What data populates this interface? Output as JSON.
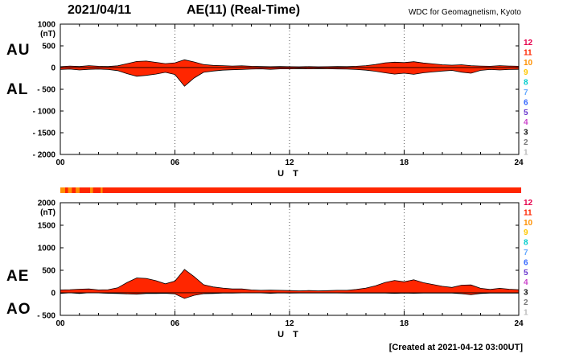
{
  "header": {
    "date": "2021/04/11",
    "title": "AE(11) (Real-Time)",
    "source": "WDC for Geomagnetism, Kyoto"
  },
  "footer": {
    "created": "[Created at 2021-04-12 03:00UT]"
  },
  "panels": {
    "top": {
      "left_labels": [
        "AU",
        "AL"
      ],
      "unit": "(nT)"
    },
    "bottom": {
      "left_labels": [
        "AE",
        "AO"
      ],
      "unit": "(nT)"
    }
  },
  "station_legend": {
    "items": [
      {
        "label": "12",
        "color": "#e6004c"
      },
      {
        "label": "11",
        "color": "#ff2600"
      },
      {
        "label": "10",
        "color": "#ff9000"
      },
      {
        "label": "9",
        "color": "#ffc800"
      },
      {
        "label": "8",
        "color": "#00cccc"
      },
      {
        "label": "7",
        "color": "#66aaff"
      },
      {
        "label": "6",
        "color": "#3366ff"
      },
      {
        "label": "5",
        "color": "#6633cc"
      },
      {
        "label": "4",
        "color": "#cc44cc"
      },
      {
        "label": "3",
        "color": "#111111"
      },
      {
        "label": "2",
        "color": "#777777"
      },
      {
        "label": "1",
        "color": "#bbbbbb"
      }
    ]
  },
  "station_bar": {
    "base_color": "#ff2600",
    "segments": [
      {
        "start": 0.0,
        "end": 0.25,
        "color": "#ff9000"
      },
      {
        "start": 0.4,
        "end": 0.6,
        "color": "#ff9000"
      },
      {
        "start": 0.8,
        "end": 1.0,
        "color": "#ff9000"
      },
      {
        "start": 1.55,
        "end": 1.7,
        "color": "#ff9000"
      },
      {
        "start": 2.1,
        "end": 2.2,
        "color": "#ff9000"
      }
    ]
  },
  "chart_data": [
    {
      "type": "area",
      "title": "AU/AL",
      "xlabel": "U T",
      "ylabel": "(nT)",
      "xlim": [
        0,
        24
      ],
      "ylim": [
        -2000,
        1000
      ],
      "x_ticks": [
        0,
        6,
        12,
        18,
        24
      ],
      "x_tick_labels": [
        "00",
        "06",
        "12",
        "18",
        "24"
      ],
      "y_ticks": [
        1000,
        500,
        0,
        -500,
        -1000,
        -1500,
        -2000
      ],
      "y_tick_labels": [
        "1000",
        "500",
        "0",
        "- 500",
        "- 1000",
        "- 1500",
        "- 2000"
      ],
      "x_start": 0,
      "x_step": 0.5,
      "series": [
        {
          "name": "AU",
          "color": "#ff2600",
          "values": [
            20,
            35,
            25,
            45,
            30,
            25,
            40,
            90,
            140,
            150,
            120,
            90,
            110,
            180,
            130,
            70,
            50,
            45,
            35,
            40,
            30,
            25,
            20,
            25,
            20,
            18,
            22,
            18,
            20,
            25,
            22,
            30,
            45,
            70,
            110,
            125,
            115,
            135,
            105,
            85,
            65,
            55,
            65,
            45,
            35,
            30,
            45,
            35,
            30
          ]
        },
        {
          "name": "AL",
          "color": "#ff2600",
          "values": [
            -45,
            -35,
            -55,
            -40,
            -35,
            -45,
            -70,
            -140,
            -200,
            -180,
            -150,
            -110,
            -160,
            -430,
            -240,
            -110,
            -80,
            -60,
            -50,
            -45,
            -35,
            -30,
            -40,
            -30,
            -30,
            -25,
            -30,
            -25,
            -28,
            -32,
            -35,
            -45,
            -60,
            -85,
            -120,
            -150,
            -130,
            -155,
            -120,
            -100,
            -80,
            -65,
            -105,
            -130,
            -65,
            -45,
            -55,
            -45,
            -40
          ]
        }
      ]
    },
    {
      "type": "area",
      "title": "AE/AO",
      "xlabel": "U T",
      "ylabel": "(nT)",
      "xlim": [
        0,
        24
      ],
      "ylim": [
        -500,
        2000
      ],
      "x_ticks": [
        0,
        6,
        12,
        18,
        24
      ],
      "x_tick_labels": [
        "00",
        "06",
        "12",
        "18",
        "24"
      ],
      "y_ticks": [
        2000,
        1500,
        1000,
        500,
        0,
        -500
      ],
      "y_tick_labels": [
        "2000",
        "1500",
        "1000",
        "500",
        "0",
        "- 500"
      ],
      "x_start": 0,
      "x_step": 0.5,
      "series": [
        {
          "name": "AE",
          "color": "#ff2600",
          "values": [
            65,
            70,
            80,
            85,
            65,
            70,
            110,
            230,
            330,
            320,
            270,
            200,
            260,
            520,
            360,
            180,
            130,
            105,
            85,
            85,
            65,
            55,
            60,
            55,
            50,
            45,
            50,
            45,
            48,
            55,
            55,
            75,
            105,
            155,
            230,
            275,
            245,
            290,
            225,
            185,
            145,
            120,
            170,
            175,
            100,
            75,
            100,
            80,
            70
          ]
        },
        {
          "name": "AO",
          "color": "#ff2600",
          "values": [
            -12,
            0,
            -15,
            2,
            -2,
            -10,
            -15,
            -25,
            -30,
            -15,
            -15,
            -10,
            -25,
            -125,
            -55,
            -20,
            -15,
            -8,
            -8,
            -2,
            -2,
            -2,
            -10,
            -2,
            -5,
            -4,
            -4,
            -4,
            -4,
            -4,
            -6,
            -8,
            -8,
            -8,
            -5,
            -12,
            -8,
            -10,
            -8,
            -8,
            -8,
            -5,
            -20,
            -42,
            -15,
            -8,
            -5,
            -5,
            -5
          ]
        }
      ]
    }
  ]
}
